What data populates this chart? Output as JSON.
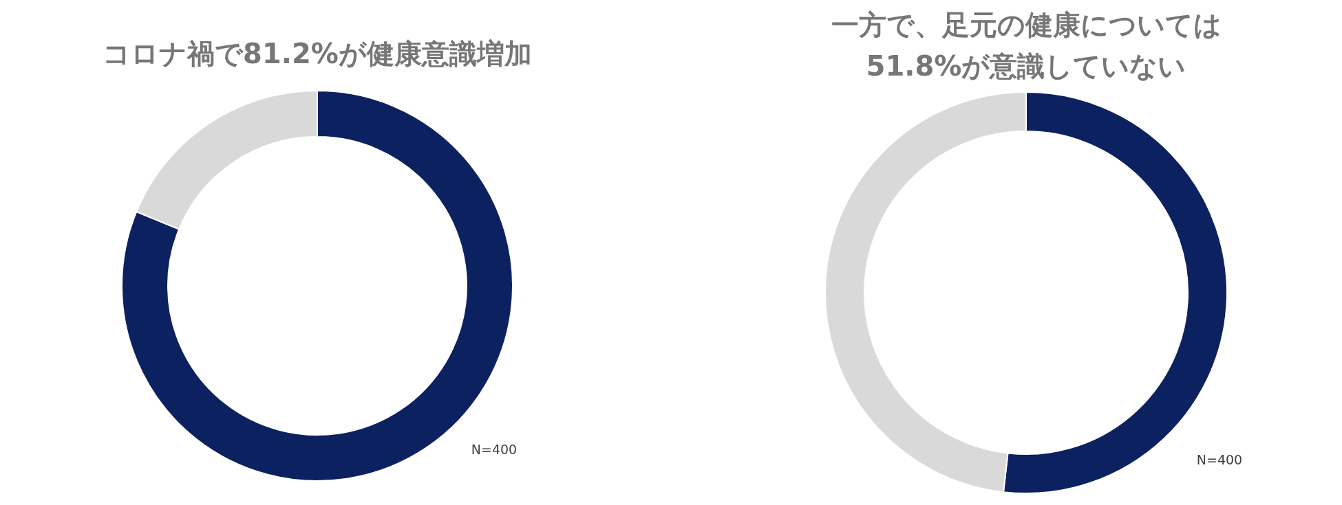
{
  "chart_data": [
    {
      "type": "donut",
      "title": "コロナ禍で81.2%が健康意識増加",
      "categories": [
        null,
        null
      ],
      "values": [
        81.2,
        18.8
      ],
      "colors": [
        "#0c215f",
        "#d9d9d9"
      ],
      "annotations": [
        "N=400"
      ]
    },
    {
      "type": "donut",
      "title": "一方で、足元の健康については\n51.8%が意識していない",
      "categories": [
        null,
        null
      ],
      "values": [
        51.8,
        48.2
      ],
      "colors": [
        "#0c215f",
        "#d9d9d9"
      ],
      "annotations": [
        "N=400"
      ]
    }
  ]
}
